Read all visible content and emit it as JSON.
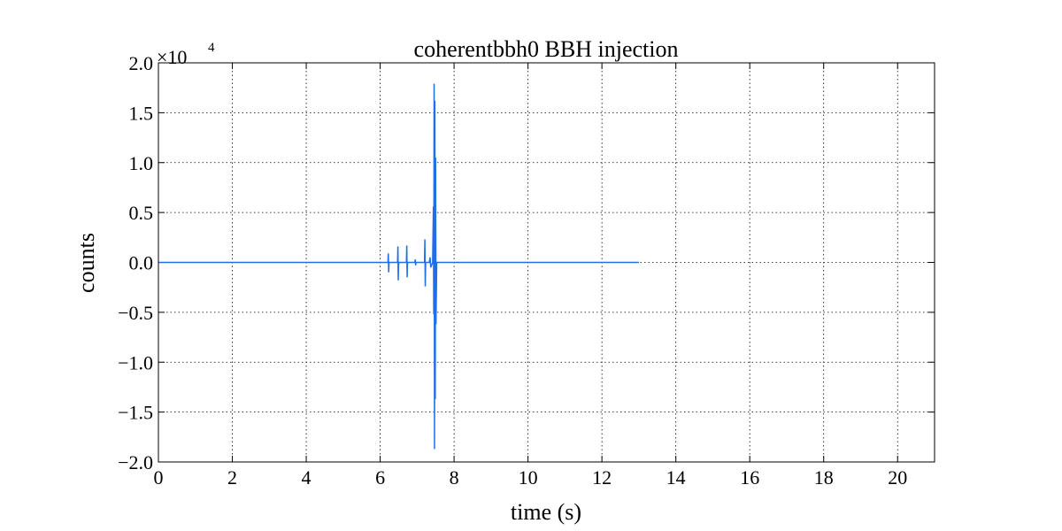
{
  "chart_data": {
    "type": "line",
    "title": "coherentbbh0 BBH injection",
    "x_label": "time (s)",
    "y_label": "counts",
    "y_multiplier": {
      "base": "×10",
      "exponent": "4"
    },
    "xlim": [
      0,
      21
    ],
    "ylim": [
      -20000,
      20000
    ],
    "xticks": [
      0,
      2,
      4,
      6,
      8,
      10,
      12,
      14,
      16,
      18,
      20
    ],
    "yticks": [
      {
        "value": -20000,
        "label": "−2.0"
      },
      {
        "value": -15000,
        "label": "−1.5"
      },
      {
        "value": -10000,
        "label": "−1.0"
      },
      {
        "value": -5000,
        "label": "−0.5"
      },
      {
        "value": 0,
        "label": "0.0"
      },
      {
        "value": 5000,
        "label": "0.5"
      },
      {
        "value": 10000,
        "label": "1.0"
      },
      {
        "value": 15000,
        "label": "1.5"
      },
      {
        "value": 20000,
        "label": "2.0"
      }
    ],
    "grid": true,
    "series": [
      {
        "color": "#1f6fe8",
        "x": [
          0,
          6.21,
          6.22,
          6.23,
          6.24,
          6.47,
          6.48,
          6.49,
          6.5,
          6.71,
          6.72,
          6.73,
          6.74,
          6.94,
          6.95,
          6.96,
          6.97,
          7.2,
          7.21,
          7.22,
          7.23,
          7.33,
          7.35,
          7.37,
          7.42,
          7.44,
          7.45,
          7.46,
          7.47,
          7.48,
          7.49,
          7.5,
          7.51,
          7.53,
          13.0
        ],
        "values": [
          0,
          0,
          900,
          -1000,
          0,
          0,
          1600,
          -1800,
          0,
          0,
          1700,
          -1500,
          0,
          0,
          300,
          -300,
          0,
          0,
          2300,
          -2400,
          0,
          0,
          500,
          -500,
          0,
          5600,
          -5200,
          17900,
          -18700,
          16200,
          -13700,
          10500,
          -6200,
          0,
          0
        ]
      }
    ]
  }
}
